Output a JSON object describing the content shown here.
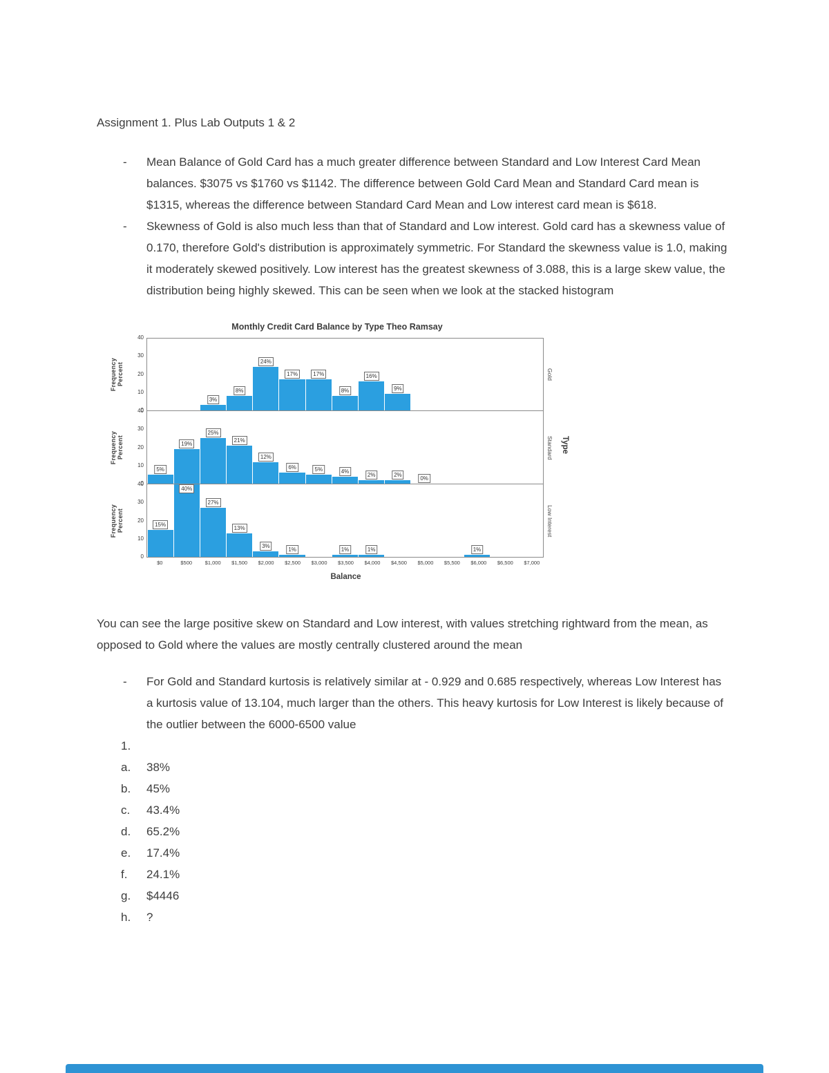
{
  "page": {
    "title": "Assignment 1. Plus Lab Outputs 1 & 2",
    "bullet_marker": "-",
    "bullets_top": [
      "Mean Balance of Gold Card has a much greater difference between Standard and Low Interest Card Mean balances. $3075 vs $1760 vs $1142. The difference between Gold Card Mean and Standard Card mean is $1315, whereas the difference between Standard Card Mean and Low interest card mean is $618.",
      "Skewness of Gold is also much less than that of Standard and Low interest. Gold card has a skewness value of 0.170, therefore Gold's distribution is approximately symmetric. For Standard the skewness value is 1.0, making it moderately skewed positively. Low interest has the greatest skewness of 3.088, this is a large skew value, the distribution being highly skewed. This can be seen when we look at the stacked histogram"
    ],
    "paragraph_after_chart": "You can see the large positive skew on Standard and Low interest, with values stretching rightward from the mean, as opposed to Gold where the values are mostly centrally clustered around the mean",
    "bullets_bottom": [
      "For Gold and Standard kurtosis is relatively similar at - 0.929 and 0.685 respectively, whereas Low Interest has a kurtosis value of 13.104, much larger than the others. This heavy kurtosis for Low Interest is likely because of the outlier between the 6000-6500 value"
    ],
    "numbered_item": "1.",
    "answers": [
      {
        "label": "a.",
        "value": "38%"
      },
      {
        "label": "b.",
        "value": "45%"
      },
      {
        "label": "c.",
        "value": "43.4%"
      },
      {
        "label": "d.",
        "value": "65.2%"
      },
      {
        "label": "e.",
        "value": "17.4%"
      },
      {
        "label": "f.",
        "value": "24.1%"
      },
      {
        "label": "g.",
        "value": "$4446"
      },
      {
        "label": "h.",
        "value": "?"
      }
    ]
  },
  "colors": {
    "footer_bar": "#2e93d4"
  },
  "chart_data": {
    "type": "bar",
    "title": "Monthly Credit Card Balance by Type Theo Ramsay",
    "xlabel": "Balance",
    "ylabel": "Frequency Percent",
    "panel_axis_label": "Type",
    "grid": false,
    "legend_position": "none",
    "ylim": [
      0,
      40
    ],
    "yticks": [
      0,
      10,
      20,
      30,
      40
    ],
    "bar_color": "#2b9fe0",
    "categories": [
      "$0",
      "$500",
      "$1,000",
      "$1,500",
      "$2,000",
      "$2,500",
      "$3,000",
      "$3,500",
      "$4,000",
      "$4,500",
      "$5,000",
      "$5,500",
      "$6,000",
      "$6,500",
      "$7,000"
    ],
    "panels": [
      {
        "name": "Gold",
        "values": [
          null,
          null,
          3,
          8,
          24,
          17,
          17,
          8,
          16,
          9,
          null,
          null,
          null,
          null,
          null
        ]
      },
      {
        "name": "Standard",
        "values": [
          5,
          19,
          25,
          21,
          12,
          6,
          5,
          4,
          2,
          2,
          0,
          null,
          null,
          null,
          null
        ]
      },
      {
        "name": "Low Interest",
        "values": [
          15,
          40,
          27,
          13,
          3,
          1,
          null,
          1,
          1,
          null,
          null,
          null,
          1,
          null,
          null
        ]
      }
    ]
  }
}
